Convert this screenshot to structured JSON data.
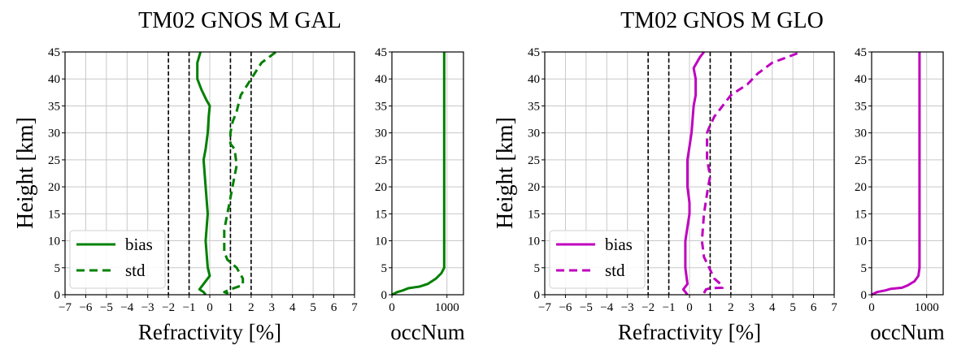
{
  "chart_data": [
    {
      "type": "line",
      "title": "TM02 GNOS M GAL",
      "color": "#008000",
      "ylabel": "Height [km]",
      "xlabel": "Refractivity [%]",
      "xlim": [
        -7,
        7
      ],
      "ylim": [
        0,
        45
      ],
      "xticks": [
        "−7",
        "−6",
        "−5",
        "−4",
        "−3",
        "−2",
        "−1",
        "0",
        "1",
        "2",
        "3",
        "4",
        "5",
        "6",
        "7"
      ],
      "yticks": [
        "0",
        "5",
        "10",
        "15",
        "20",
        "25",
        "30",
        "35",
        "40",
        "45"
      ],
      "reference_lines": [
        -2,
        -1,
        1,
        2
      ],
      "legend": {
        "position": "lower-left",
        "entries": [
          "bias",
          "std"
        ]
      },
      "grid": true,
      "series": [
        {
          "name": "bias",
          "style": "solid",
          "points": [
            [
              -0.2,
              0
            ],
            [
              -0.3,
              0.5
            ],
            [
              -0.5,
              1
            ],
            [
              -0.3,
              2
            ],
            [
              0,
              3.5
            ],
            [
              -0.1,
              5
            ],
            [
              -0.2,
              10
            ],
            [
              -0.1,
              15
            ],
            [
              -0.2,
              20
            ],
            [
              -0.3,
              25
            ],
            [
              -0.2,
              27
            ],
            [
              -0.1,
              30
            ],
            [
              -0.05,
              33
            ],
            [
              0,
              35
            ],
            [
              -0.15,
              36
            ],
            [
              -0.4,
              38
            ],
            [
              -0.6,
              40
            ],
            [
              -0.6,
              43
            ],
            [
              -0.45,
              45
            ]
          ]
        },
        {
          "name": "std",
          "style": "dashed",
          "points": [
            [
              0.9,
              0.2
            ],
            [
              0.7,
              0.5
            ],
            [
              1.0,
              1
            ],
            [
              1.6,
              1.8
            ],
            [
              1.6,
              3
            ],
            [
              1.3,
              5
            ],
            [
              1.0,
              6
            ],
            [
              0.85,
              6.5
            ],
            [
              0.7,
              8
            ],
            [
              0.7,
              12
            ],
            [
              0.85,
              15
            ],
            [
              0.95,
              17
            ],
            [
              1.15,
              21
            ],
            [
              1.3,
              24
            ],
            [
              1.2,
              27
            ],
            [
              1.0,
              28
            ],
            [
              1.0,
              30
            ],
            [
              1.1,
              32
            ],
            [
              1.3,
              34
            ],
            [
              1.5,
              37
            ],
            [
              2.0,
              40
            ],
            [
              2.5,
              43
            ],
            [
              3.2,
              45
            ]
          ]
        }
      ],
      "occ_panel": {
        "xlabel": "occNum",
        "xlim": [
          0,
          1300
        ],
        "xticks": [
          "0",
          "1000"
        ],
        "tick_values": [
          0,
          1000
        ],
        "points": [
          [
            0,
            0
          ],
          [
            100,
            0.5
          ],
          [
            200,
            0.8
          ],
          [
            300,
            1.2
          ],
          [
            500,
            1.5
          ],
          [
            650,
            2
          ],
          [
            800,
            3
          ],
          [
            900,
            4
          ],
          [
            950,
            5
          ],
          [
            950,
            45
          ]
        ]
      }
    },
    {
      "type": "line",
      "title": "TM02 GNOS M GLO",
      "color": "#bf00bf",
      "ylabel": "Height [km]",
      "xlabel": "Refractivity [%]",
      "xlim": [
        -7,
        7
      ],
      "ylim": [
        0,
        45
      ],
      "xticks": [
        "−7",
        "−6",
        "−5",
        "−4",
        "−3",
        "−2",
        "−1",
        "0",
        "1",
        "2",
        "3",
        "4",
        "5",
        "6",
        "7"
      ],
      "yticks": [
        "0",
        "5",
        "10",
        "15",
        "20",
        "25",
        "30",
        "35",
        "40",
        "45"
      ],
      "reference_lines": [
        -2,
        -1,
        1,
        2
      ],
      "legend": {
        "position": "lower-left",
        "entries": [
          "bias",
          "std"
        ]
      },
      "grid": true,
      "series": [
        {
          "name": "bias",
          "style": "solid",
          "points": [
            [
              -0.1,
              0
            ],
            [
              -0.3,
              1
            ],
            [
              -0.1,
              2
            ],
            [
              -0.2,
              5
            ],
            [
              -0.2,
              10
            ],
            [
              0,
              15
            ],
            [
              0,
              17
            ],
            [
              -0.1,
              20
            ],
            [
              -0.1,
              25
            ],
            [
              0.1,
              30
            ],
            [
              0.2,
              35
            ],
            [
              0.3,
              37
            ],
            [
              0.3,
              40
            ],
            [
              0.2,
              42
            ],
            [
              0.5,
              44
            ],
            [
              0.7,
              45
            ]
          ]
        },
        {
          "name": "std",
          "style": "dashed",
          "points": [
            [
              0.7,
              0.3
            ],
            [
              0.8,
              1
            ],
            [
              1.0,
              1.2
            ],
            [
              1.6,
              1.3
            ],
            [
              1.5,
              2
            ],
            [
              1.2,
              3
            ],
            [
              0.95,
              5
            ],
            [
              0.7,
              7
            ],
            [
              0.6,
              10
            ],
            [
              0.7,
              15
            ],
            [
              0.9,
              20
            ],
            [
              1.0,
              22
            ],
            [
              0.85,
              25
            ],
            [
              0.85,
              30
            ],
            [
              0.95,
              31
            ],
            [
              1.2,
              33
            ],
            [
              1.6,
              35
            ],
            [
              2.0,
              37
            ],
            [
              2.4,
              38
            ],
            [
              2.8,
              39
            ],
            [
              3.3,
              41
            ],
            [
              4.0,
              43
            ],
            [
              5.4,
              45
            ]
          ]
        }
      ],
      "occ_panel": {
        "xlabel": "occNum",
        "xlim": [
          0,
          1300
        ],
        "xticks": [
          "0",
          "1000"
        ],
        "tick_values": [
          0,
          1000
        ],
        "points": [
          [
            0,
            0
          ],
          [
            100,
            0.5
          ],
          [
            250,
            0.8
          ],
          [
            350,
            1.1
          ],
          [
            550,
            1.3
          ],
          [
            650,
            1.7
          ],
          [
            780,
            2.5
          ],
          [
            850,
            3.5
          ],
          [
            870,
            5
          ],
          [
            870,
            45
          ]
        ]
      }
    }
  ]
}
